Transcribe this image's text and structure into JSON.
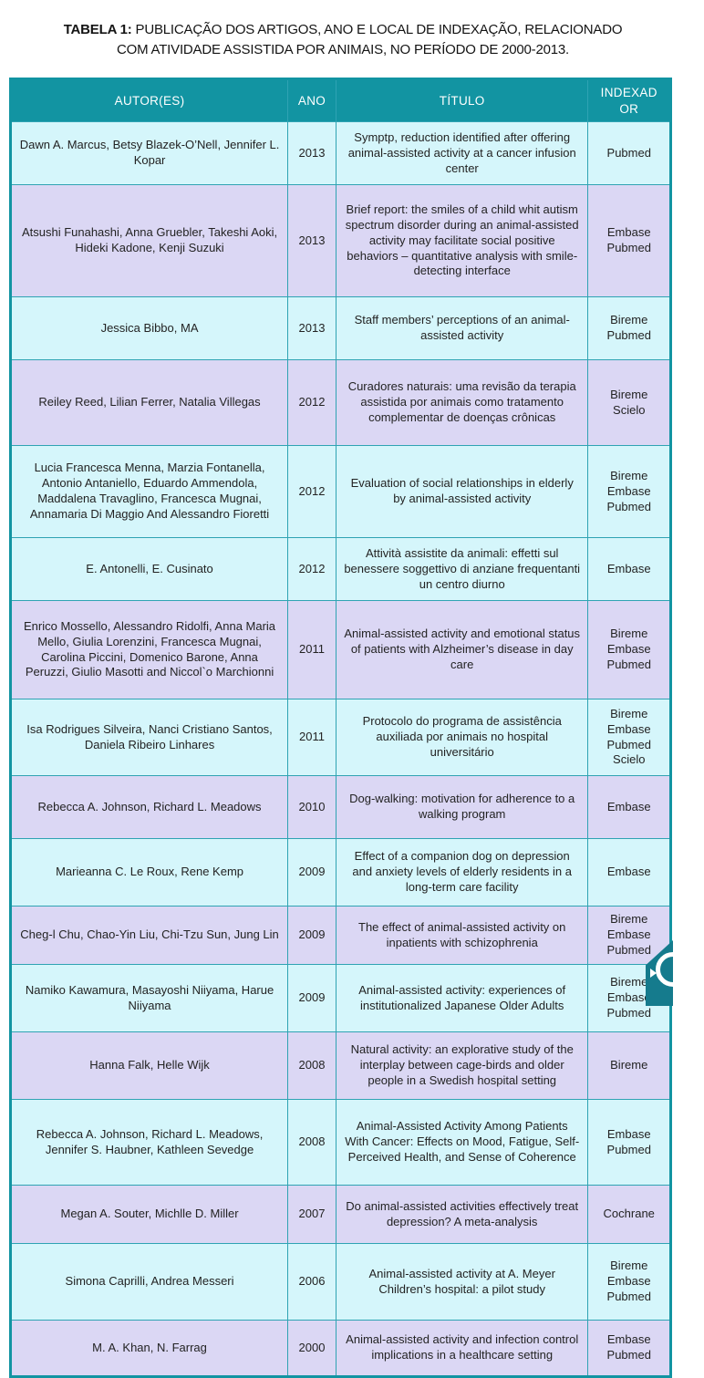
{
  "colors": {
    "headerBg": "#1294a2",
    "headerText": "#ffffff",
    "rowCyan": "#d5f6fb",
    "rowLavender": "#dbd7f4",
    "borderOuter": "#1294a2",
    "borderInner": "#2fa3b3",
    "bodyText": "#232323",
    "widgetTeal": "#157b8d"
  },
  "title": {
    "label": "TABELA 1:",
    "line1_rest": "PUBLICAÇÃO DOS ARTIGOS, ANO E LOCAL DE INDEXAÇÃO, RELACIONADO",
    "line2": "COM ATIVIDADE ASSISTIDA POR ANIMAIS, NO PERÍODO DE 2000-2013."
  },
  "icons": {
    "widget_arrow": "triangle-right-icon",
    "widget_lens": "magnifier-lens-icon"
  },
  "table": {
    "headers": [
      "AUTOR(ES)",
      "ANO",
      "TÍTULO",
      "INDEXADOR"
    ],
    "rows": [
      {
        "autores": "Dawn A. Marcus, Betsy Blazek-O’Nell, Jennifer L. Kopar",
        "ano": "2013",
        "titulo": "Symptp, reduction identified after offering animal-assisted activity at a cancer infusion center",
        "indexador": [
          "Pubmed"
        ],
        "shade": "cyan"
      },
      {
        "autores": "Atsushi Funahashi, Anna Gruebler, Takeshi Aoki, Hideki Kadone, Kenji Suzuki",
        "ano": "2013",
        "titulo": "Brief report: the smiles of a child whit autism spectrum disorder during an animal-assisted activity may facilitate social positive behaviors – quantitative analysis with smile-detecting interface",
        "indexador": [
          "Embase",
          "Pubmed"
        ],
        "shade": "lavender"
      },
      {
        "autores": "Jessica Bibbo, MA",
        "ano": "2013",
        "titulo": "Staff members’ perceptions of an animal-assisted activity",
        "indexador": [
          "Bireme",
          "Pubmed"
        ],
        "shade": "cyan"
      },
      {
        "autores": "Reiley Reed, Lilian Ferrer, Natalia Villegas",
        "ano": "2012",
        "titulo": "Curadores naturais: uma revisão da terapia assistida por animais como tratamento complementar de doenças crônicas",
        "indexador": [
          "Bireme",
          "Scielo"
        ],
        "shade": "lavender"
      },
      {
        "autores": "Lucia Francesca Menna, Marzia Fontanella, Antonio Antaniello, Eduardo Ammendola, Maddalena Travaglino, Francesca Mugnai, Annamaria Di Maggio And Alessandro Fioretti",
        "ano": "2012",
        "titulo": "Evaluation of social relationships in elderly by animal-assisted activity",
        "indexador": [
          "Bireme",
          "Embase",
          "Pubmed"
        ],
        "shade": "cyan"
      },
      {
        "autores": "E. Antonelli, E. Cusinato",
        "ano": "2012",
        "titulo": "Attività assistite da animali: effetti sul benessere soggettivo di anziane frequentanti un centro diurno",
        "indexador": [
          "Embase"
        ],
        "shade": "cyan"
      },
      {
        "autores": "Enrico Mossello, Alessandro Ridolfi, Anna Maria Mello, Giulia Lorenzini, Francesca Mugnai, Carolina Piccini, Domenico Barone, Anna Peruzzi, Giulio Masotti and Niccol`o Marchionni",
        "ano": "2011",
        "titulo": "Animal-assisted activity and emotional status of patients with Alzheimer’s disease in day care",
        "indexador": [
          "Bireme",
          "Embase",
          "Pubmed"
        ],
        "shade": "lavender"
      },
      {
        "autores": "Isa Rodrigues Silveira, Nanci Cristiano Santos, Daniela Ribeiro Linhares",
        "ano": "2011",
        "titulo": "Protocolo do programa de assistência auxiliada por animais no hospital universitário",
        "indexador": [
          "Bireme",
          "Embase",
          "Pubmed",
          "Scielo"
        ],
        "shade": "cyan"
      },
      {
        "autores": "Rebecca A. Johnson, Richard L. Meadows",
        "ano": "2010",
        "titulo": "Dog-walking: motivation for adherence to a walking program",
        "indexador": [
          "Embase"
        ],
        "shade": "lavender"
      },
      {
        "autores": "Marieanna C. Le Roux, Rene Kemp",
        "ano": "2009",
        "titulo": "Effect of a companion dog on depression and anxiety levels of elderly residents in a long-term care facility",
        "indexador": [
          "Embase"
        ],
        "shade": "cyan"
      },
      {
        "autores": "Cheg-l Chu, Chao-Yin Liu, Chi-Tzu Sun, Jung Lin",
        "ano": "2009",
        "titulo": "The effect of animal-assisted activity on inpatients with schizophrenia",
        "indexador": [
          "Bireme",
          "Embase",
          "Pubmed"
        ],
        "shade": "lavender"
      },
      {
        "autores": "Namiko Kawamura, Masayoshi Niiyama, Harue Niiyama",
        "ano": "2009",
        "titulo": "Animal-assisted activity: experiences of institutionalized Japanese Older Adults",
        "indexador": [
          "Bireme",
          "Embase",
          "Pubmed"
        ],
        "shade": "cyan"
      },
      {
        "autores": "Hanna Falk, Helle Wijk",
        "ano": "2008",
        "titulo": "Natural activity: an explorative study of the interplay between cage-birds and older people in a Swedish hospital setting",
        "indexador": [
          "Bireme"
        ],
        "shade": "lavender"
      },
      {
        "autores": "Rebecca A. Johnson, Richard L. Meadows, Jennifer S. Haubner, Kathleen Sevedge",
        "ano": "2008",
        "titulo": "Animal-Assisted Activity Among Patients With Cancer: Effects on Mood, Fatigue, Self-Perceived Health, and Sense of Coherence",
        "indexador": [
          "Embase",
          "Pubmed"
        ],
        "shade": "cyan"
      },
      {
        "autores": "Megan A. Souter, Michlle D. Miller",
        "ano": "2007",
        "titulo": "Do animal-assisted activities effectively treat depression? A meta-analysis",
        "indexador": [
          "Cochrane"
        ],
        "shade": "lavender"
      },
      {
        "autores": "Simona Caprilli, Andrea Messeri",
        "ano": "2006",
        "titulo": "Animal-assisted activity at A. Meyer Children’s hospital: a pilot study",
        "indexador": [
          "Bireme",
          "Embase",
          "Pubmed"
        ],
        "shade": "cyan"
      },
      {
        "autores": "M. A. Khan, N. Farrag",
        "ano": "2000",
        "titulo": "Animal-assisted activity and infection control implications in a healthcare setting",
        "indexador": [
          "Embase",
          "Pubmed"
        ],
        "shade": "lavender"
      }
    ]
  }
}
